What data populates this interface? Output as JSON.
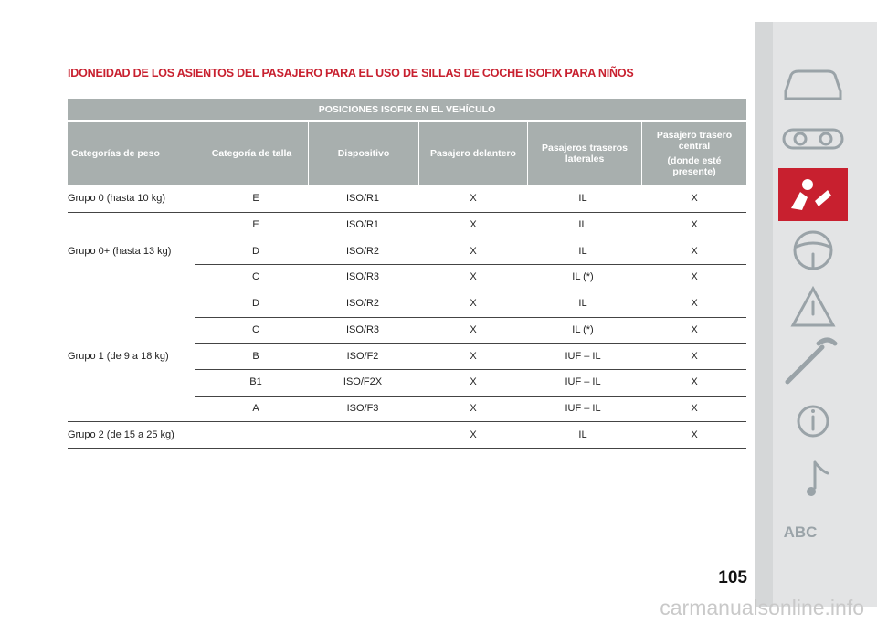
{
  "header": {
    "title": "IDONEIDAD DE LOS ASIENTOS DEL PASAJERO PARA EL USO DE SILLAS DE COCHE ISOFIX PARA NIÑOS"
  },
  "table": {
    "group_header": "POSICIONES ISOFIX EN EL VEHÍCULO",
    "headers": [
      "Categorías de peso",
      "Categoría de talla",
      "Dispositivo",
      "Pasajero delantero",
      "Pasajeros traseros laterales",
      {
        "text": "Pasajero trasero central",
        "note": "(donde esté presente)"
      }
    ],
    "groups": [
      {
        "label": "Grupo 0 (hasta 10 kg)",
        "rows": [
          {
            "size": "E",
            "device": "ISO/R1",
            "front": "X",
            "side": "IL",
            "center": "X"
          }
        ]
      },
      {
        "label": "Grupo 0+ (hasta 13 kg)",
        "rows": [
          {
            "size": "E",
            "device": "ISO/R1",
            "front": "X",
            "side": "IL",
            "center": "X"
          },
          {
            "size": "D",
            "device": "ISO/R2",
            "front": "X",
            "side": "IL",
            "center": "X"
          },
          {
            "size": "C",
            "device": "ISO/R3",
            "front": "X",
            "side": "IL (*)",
            "center": "X"
          }
        ]
      },
      {
        "label": "Grupo 1 (de 9 a 18 kg)",
        "rows": [
          {
            "size": "D",
            "device": "ISO/R2",
            "front": "X",
            "side": "IL",
            "center": "X"
          },
          {
            "size": "C",
            "device": "ISO/R3",
            "front": "X",
            "side": "IL (*)",
            "center": "X"
          },
          {
            "size": "B",
            "device": "ISO/F2",
            "front": "X",
            "side": "IUF – IL",
            "center": "X"
          },
          {
            "size": "B1",
            "device": "ISO/F2X",
            "front": "X",
            "side": "IUF – IL",
            "center": "X"
          },
          {
            "size": "A",
            "device": "ISO/F3",
            "front": "X",
            "side": "IUF – IL",
            "center": "X"
          }
        ]
      },
      {
        "label": "Grupo 2 (de 15 a 25 kg)",
        "rows": [
          {
            "front": "X",
            "side": "IL",
            "center": "X"
          }
        ]
      }
    ]
  },
  "sidebar": {
    "last_icon": "ABC"
  },
  "footer": {
    "page_number": "105",
    "watermark": "carmanualsonline.info"
  }
}
